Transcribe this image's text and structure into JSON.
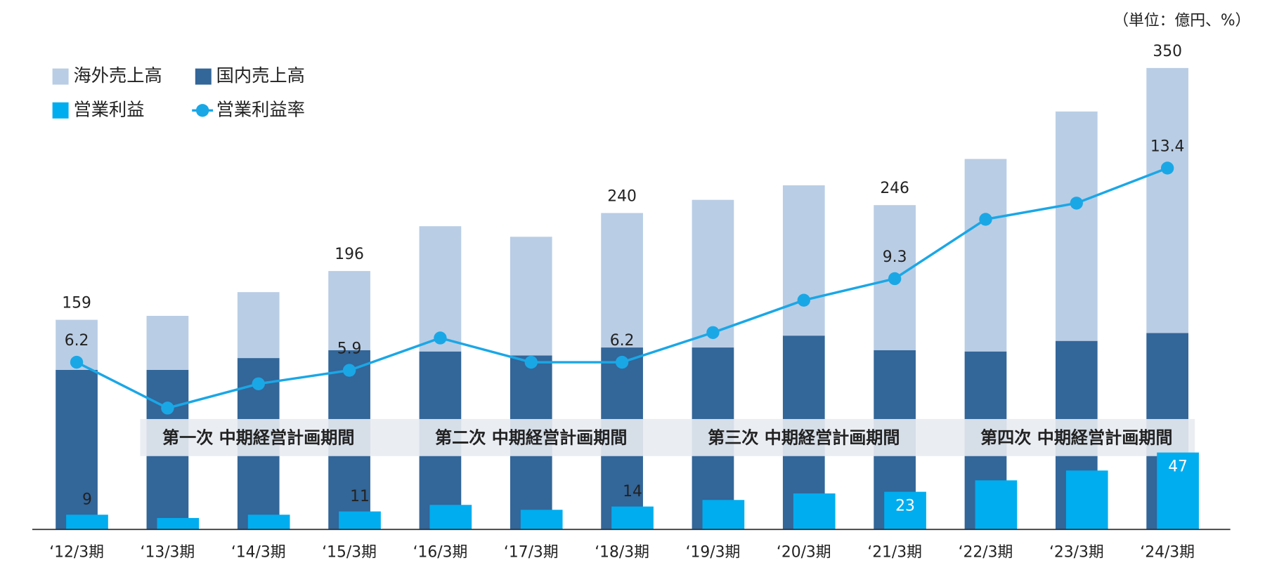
{
  "chart_data": {
    "type": "bar",
    "unit_note": "（単位：億円、%）",
    "categories": [
      "‘12/3期",
      "‘13/3期",
      "‘14/3期",
      "‘15/3期",
      "‘16/3期",
      "‘17/3期",
      "‘18/3期",
      "‘19/3期",
      "‘20/3期",
      "‘21/3期",
      "‘22/3期",
      "‘23/3期",
      "‘24/3期"
    ],
    "ylim": [
      0,
      360
    ],
    "y2lim": [
      0,
      290
    ],
    "y3lim": [
      0,
      17.6
    ],
    "series": [
      {
        "name": "国内売上高",
        "color": "#336699",
        "stack": true,
        "values": [
          121,
          121,
          130,
          136,
          135,
          132,
          138,
          138,
          147,
          136,
          135,
          143,
          149
        ]
      },
      {
        "name": "海外売上高",
        "color": "#b9cde5",
        "stack": true,
        "values": [
          38,
          41,
          50,
          60,
          95,
          90,
          102,
          112,
          114,
          110,
          146,
          174,
          201
        ]
      },
      {
        "name": "営業利益",
        "color": "#00adef",
        "axis": "y2",
        "values": [
          9,
          7,
          9,
          11,
          15,
          12,
          14,
          18,
          22,
          23,
          30,
          36,
          47
        ],
        "value_labels": [
          9,
          null,
          null,
          11,
          null,
          null,
          14,
          null,
          null,
          23,
          null,
          null,
          47
        ]
      },
      {
        "name": "営業利益率",
        "color": "#1aa7e6",
        "type": "line",
        "axis": "y3",
        "values": [
          6.2,
          4.5,
          5.4,
          5.9,
          7.1,
          6.2,
          6.2,
          7.3,
          8.5,
          9.3,
          11.5,
          12.1,
          13.4
        ],
        "value_labels": [
          6.2,
          null,
          null,
          5.9,
          null,
          null,
          6.2,
          null,
          null,
          9.3,
          null,
          null,
          13.4
        ]
      }
    ],
    "total_labels": [
      159,
      null,
      null,
      196,
      null,
      null,
      240,
      null,
      null,
      246,
      null,
      null,
      350
    ],
    "periods": [
      "第一次 中期経営計画期間",
      "第二次 中期経営計画期間",
      "第三次 中期経営計画期間",
      "第四次 中期経営計画期間"
    ]
  }
}
